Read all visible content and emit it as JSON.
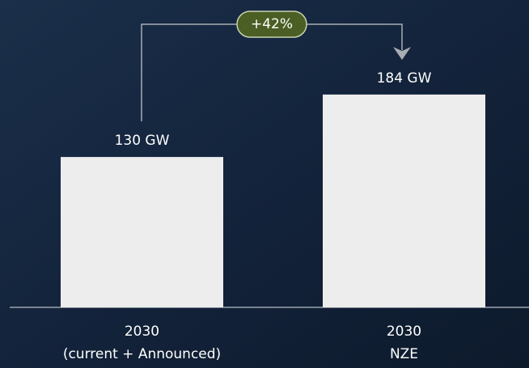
{
  "chart_data": {
    "type": "bar",
    "categories": [
      [
        "2030",
        "(current + Announced)"
      ],
      [
        "2030",
        "NZE"
      ]
    ],
    "values": [
      130,
      184
    ],
    "value_labels": [
      "130 GW",
      "184 GW"
    ],
    "color": "#ededed",
    "annotation": "+42%"
  }
}
